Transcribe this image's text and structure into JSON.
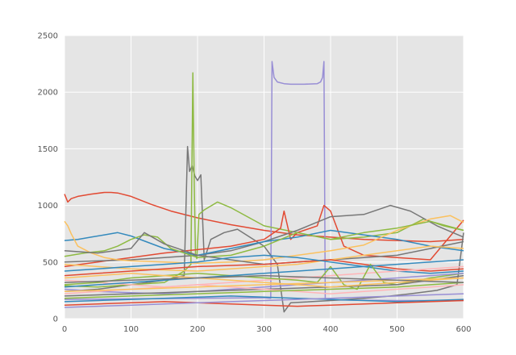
{
  "chart_data": {
    "type": "line",
    "title": "",
    "xlabel": "",
    "ylabel": "",
    "xlim": [
      0,
      600
    ],
    "ylim": [
      0,
      2500
    ],
    "x_ticks": [
      0,
      100,
      200,
      300,
      400,
      500,
      600
    ],
    "y_ticks": [
      0,
      500,
      1000,
      1500,
      2000,
      2500
    ],
    "x_tick_labels": [
      "0",
      "100",
      "200",
      "300",
      "400",
      "500",
      "600"
    ],
    "y_tick_labels": [
      "0",
      "500",
      "1000",
      "1500",
      "2000",
      "2500"
    ],
    "grid": true,
    "legend": "none",
    "style": {
      "background": "#e5e5e5",
      "grid_color": "#ffffff",
      "palette": [
        "#e24a33",
        "#348abd",
        "#988ed5",
        "#777777",
        "#fbc15e",
        "#8eba42",
        "#ffb5b8"
      ]
    },
    "series": [
      {
        "color": "#e24a33",
        "x": [
          0,
          5,
          10,
          20,
          40,
          60,
          70,
          80,
          100,
          130,
          160,
          200,
          250,
          300,
          350,
          400,
          450,
          500,
          550,
          600
        ],
        "y": [
          1100,
          1030,
          1060,
          1080,
          1100,
          1115,
          1115,
          1110,
          1080,
          1010,
          950,
          890,
          830,
          780,
          740,
          720,
          700,
          690,
          680,
          700
        ]
      },
      {
        "color": "#988ed5",
        "x": [
          0,
          100,
          200,
          300,
          310,
          312,
          315,
          320,
          330,
          340,
          360,
          380,
          385,
          388,
          390,
          392,
          395,
          400,
          500,
          600
        ],
        "y": [
          170,
          175,
          180,
          185,
          180,
          2270,
          2130,
          2090,
          2075,
          2070,
          2070,
          2075,
          2090,
          2130,
          2270,
          180,
          170,
          165,
          160,
          160
        ]
      },
      {
        "color": "#777777",
        "x": [
          0,
          50,
          100,
          150,
          180,
          185,
          188,
          192,
          196,
          200,
          205,
          210,
          220,
          240,
          260,
          300,
          320,
          330,
          340,
          400,
          450,
          490,
          520,
          560,
          590,
          600
        ],
        "y": [
          240,
          260,
          300,
          340,
          380,
          1520,
          1300,
          1350,
          1260,
          1220,
          1270,
          520,
          700,
          760,
          790,
          640,
          480,
          60,
          140,
          160,
          180,
          200,
          220,
          250,
          300,
          760
        ]
      },
      {
        "color": "#8eba42",
        "x": [
          0,
          50,
          100,
          150,
          180,
          190,
          193,
          195,
          197,
          199,
          202,
          210,
          230,
          250,
          300,
          350,
          400,
          450,
          500,
          540,
          570,
          600
        ],
        "y": [
          290,
          280,
          300,
          320,
          420,
          480,
          2170,
          1200,
          560,
          530,
          920,
          960,
          1030,
          980,
          820,
          760,
          700,
          720,
          760,
          880,
          820,
          780
        ]
      },
      {
        "color": "#e24a33",
        "x": [
          0,
          50,
          100,
          150,
          200,
          250,
          300,
          325,
          330,
          340,
          350,
          380,
          390,
          400,
          420,
          450,
          500,
          550,
          600
        ],
        "y": [
          460,
          500,
          540,
          580,
          610,
          640,
          700,
          800,
          950,
          700,
          760,
          820,
          1000,
          950,
          640,
          560,
          540,
          520,
          870
        ]
      },
      {
        "color": "#777777",
        "x": [
          0,
          100,
          150,
          200,
          250,
          300,
          350,
          400,
          450,
          480,
          490,
          520,
          560,
          600
        ],
        "y": [
          500,
          520,
          540,
          560,
          600,
          680,
          780,
          900,
          920,
          980,
          1000,
          950,
          820,
          720
        ]
      },
      {
        "color": "#348abd",
        "x": [
          0,
          20,
          40,
          60,
          80,
          100,
          150,
          200,
          250,
          300,
          350,
          400,
          450,
          500,
          550,
          600
        ],
        "y": [
          690,
          700,
          720,
          740,
          760,
          730,
          620,
          560,
          620,
          680,
          720,
          780,
          740,
          700,
          640,
          600
        ]
      },
      {
        "color": "#fbc15e",
        "x": [
          0,
          5,
          10,
          20,
          40,
          60,
          80,
          100,
          150,
          200,
          250,
          300,
          350,
          400,
          450,
          500,
          550,
          580,
          600
        ],
        "y": [
          860,
          820,
          750,
          640,
          580,
          540,
          520,
          510,
          500,
          490,
          500,
          520,
          560,
          600,
          650,
          780,
          880,
          910,
          850
        ]
      },
      {
        "color": "#8eba42",
        "x": [
          0,
          30,
          60,
          80,
          100,
          120,
          140,
          160,
          200,
          250,
          300,
          350,
          400,
          450,
          500,
          550,
          600
        ],
        "y": [
          550,
          580,
          600,
          640,
          700,
          740,
          720,
          620,
          540,
          560,
          640,
          760,
          700,
          760,
          800,
          860,
          780
        ]
      },
      {
        "color": "#777777",
        "x": [
          0,
          50,
          100,
          120,
          150,
          200,
          250,
          300,
          350,
          400,
          450,
          500,
          550,
          600
        ],
        "y": [
          600,
          580,
          620,
          760,
          660,
          560,
          520,
          480,
          500,
          520,
          540,
          560,
          620,
          680
        ]
      },
      {
        "color": "#fbc15e",
        "x": [
          0,
          50,
          100,
          150,
          200,
          250,
          300,
          350,
          400,
          450,
          500,
          550,
          600
        ],
        "y": [
          480,
          460,
          440,
          430,
          420,
          440,
          460,
          480,
          520,
          560,
          600,
          640,
          620
        ]
      },
      {
        "color": "#e24a33",
        "x": [
          0,
          50,
          100,
          150,
          200,
          250,
          300,
          350,
          400,
          450,
          500,
          550,
          600
        ],
        "y": [
          380,
          400,
          420,
          440,
          460,
          470,
          480,
          500,
          520,
          480,
          440,
          420,
          440
        ]
      },
      {
        "color": "#348abd",
        "x": [
          0,
          50,
          100,
          150,
          200,
          250,
          300,
          350,
          400,
          450,
          500,
          550,
          600
        ],
        "y": [
          420,
          440,
          460,
          480,
          500,
          540,
          560,
          540,
          500,
          460,
          420,
          400,
          420
        ]
      },
      {
        "color": "#ffb5b8",
        "x": [
          0,
          50,
          100,
          150,
          200,
          250,
          300,
          350,
          400,
          450,
          500,
          550,
          600
        ],
        "y": [
          340,
          320,
          300,
          280,
          300,
          320,
          340,
          360,
          380,
          400,
          420,
          440,
          460
        ]
      },
      {
        "color": "#8eba42",
        "x": [
          0,
          50,
          100,
          150,
          200,
          250,
          300,
          350,
          380,
          400,
          420,
          440,
          460,
          480,
          500,
          550,
          600
        ],
        "y": [
          300,
          320,
          360,
          380,
          400,
          380,
          360,
          340,
          320,
          460,
          300,
          260,
          480,
          320,
          300,
          360,
          400
        ]
      },
      {
        "color": "#988ed5",
        "x": [
          0,
          50,
          100,
          150,
          200,
          250,
          300,
          350,
          400,
          450,
          500,
          550,
          600
        ],
        "y": [
          260,
          240,
          230,
          220,
          240,
          260,
          280,
          300,
          320,
          340,
          360,
          380,
          400
        ]
      },
      {
        "color": "#777777",
        "x": [
          0,
          50,
          100,
          150,
          200,
          250,
          300,
          350,
          400,
          450,
          500,
          550,
          600
        ],
        "y": [
          200,
          210,
          220,
          230,
          240,
          250,
          260,
          270,
          280,
          290,
          300,
          340,
          380
        ]
      },
      {
        "color": "#fbc15e",
        "x": [
          0,
          50,
          100,
          150,
          200,
          250,
          300,
          350,
          400,
          450,
          500,
          550,
          600
        ],
        "y": [
          360,
          380,
          400,
          380,
          360,
          340,
          320,
          300,
          280,
          300,
          320,
          340,
          360
        ]
      },
      {
        "color": "#348abd",
        "x": [
          0,
          50,
          100,
          150,
          200,
          250,
          300,
          350,
          400,
          450,
          500,
          550,
          600
        ],
        "y": [
          150,
          160,
          170,
          180,
          190,
          200,
          190,
          180,
          170,
          160,
          150,
          160,
          170
        ]
      },
      {
        "color": "#e24a33",
        "x": [
          0,
          50,
          100,
          150,
          200,
          250,
          300,
          350,
          400,
          450,
          500,
          550,
          600
        ],
        "y": [
          120,
          130,
          140,
          150,
          140,
          130,
          120,
          110,
          120,
          130,
          140,
          150,
          160
        ]
      },
      {
        "color": "#ffb5b8",
        "x": [
          0,
          50,
          100,
          150,
          200,
          250,
          300,
          350,
          400,
          450,
          500,
          550,
          600
        ],
        "y": [
          220,
          240,
          260,
          280,
          300,
          280,
          260,
          240,
          220,
          240,
          260,
          280,
          300
        ]
      },
      {
        "color": "#8eba42",
        "x": [
          0,
          50,
          100,
          150,
          200,
          250,
          300,
          350,
          400,
          450,
          500,
          550,
          600
        ],
        "y": [
          180,
          190,
          200,
          210,
          220,
          230,
          240,
          250,
          260,
          270,
          280,
          300,
          320
        ]
      },
      {
        "color": "#988ed5",
        "x": [
          0,
          50,
          100,
          150,
          200,
          250,
          300,
          350,
          400,
          450,
          500,
          550,
          600
        ],
        "y": [
          100,
          110,
          120,
          130,
          140,
          150,
          160,
          170,
          180,
          190,
          200,
          210,
          220
        ]
      },
      {
        "color": "#348abd",
        "x": [
          0,
          50,
          100,
          150,
          200,
          250,
          300,
          350,
          400,
          450,
          500,
          550,
          600
        ],
        "y": [
          280,
          300,
          320,
          340,
          360,
          380,
          400,
          420,
          440,
          460,
          480,
          500,
          520
        ]
      },
      {
        "color": "#fbc15e",
        "x": [
          0,
          50,
          100,
          150,
          200,
          250,
          300,
          350,
          400,
          450,
          500,
          550,
          600
        ],
        "y": [
          240,
          250,
          260,
          270,
          280,
          290,
          300,
          310,
          320,
          330,
          340,
          350,
          360
        ]
      },
      {
        "color": "#777777",
        "x": [
          0,
          50,
          100,
          150,
          200,
          250,
          300,
          350,
          400,
          450,
          500,
          550,
          600
        ],
        "y": [
          320,
          330,
          340,
          350,
          360,
          370,
          380,
          370,
          360,
          350,
          340,
          330,
          320
        ]
      }
    ]
  }
}
